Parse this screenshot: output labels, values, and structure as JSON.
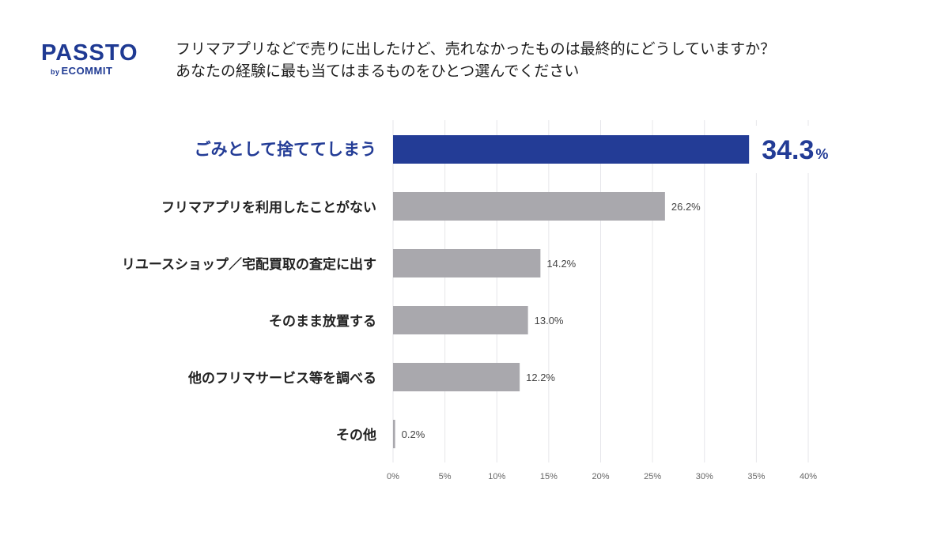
{
  "brand": {
    "name": "PASSTO",
    "by": "by",
    "sub": "ECOMMIT",
    "color": "#1f3a93"
  },
  "question": {
    "line1": "フリマアプリなどで売りに出したけど、売れなかったものは最終的にどうしていますか？",
    "line2": "あなたの経験に最も当てはまるものをひとつ選んでください"
  },
  "colors": {
    "highlight": "#233c96",
    "bar": "#a9a8ad",
    "grid": "#e6e6ea",
    "label": "#222222",
    "tick": "#666666"
  },
  "chart_data": {
    "type": "bar",
    "orientation": "horizontal",
    "title": "",
    "categories": [
      "ごみとして捨ててしまう",
      "フリマアプリを利用したことがない",
      "リユースショップ／宅配買取の査定に出す",
      "そのまま放置する",
      "他のフリマサービス等を調べる",
      "その他"
    ],
    "values": [
      34.3,
      26.2,
      14.2,
      13.0,
      12.2,
      0.2
    ],
    "value_labels": [
      "34.3",
      "26.2%",
      "14.2%",
      "13.0%",
      "12.2%",
      "0.2%"
    ],
    "highlight_unit": "%",
    "highlight_index": 0,
    "xlim": [
      0,
      40
    ],
    "xticks": [
      0,
      5,
      10,
      15,
      20,
      25,
      30,
      35,
      40
    ],
    "xtick_labels": [
      "0%",
      "5%",
      "10%",
      "15%",
      "20%",
      "25%",
      "30%",
      "35%",
      "40%"
    ],
    "xlabel": "",
    "ylabel": "",
    "grid": true
  }
}
